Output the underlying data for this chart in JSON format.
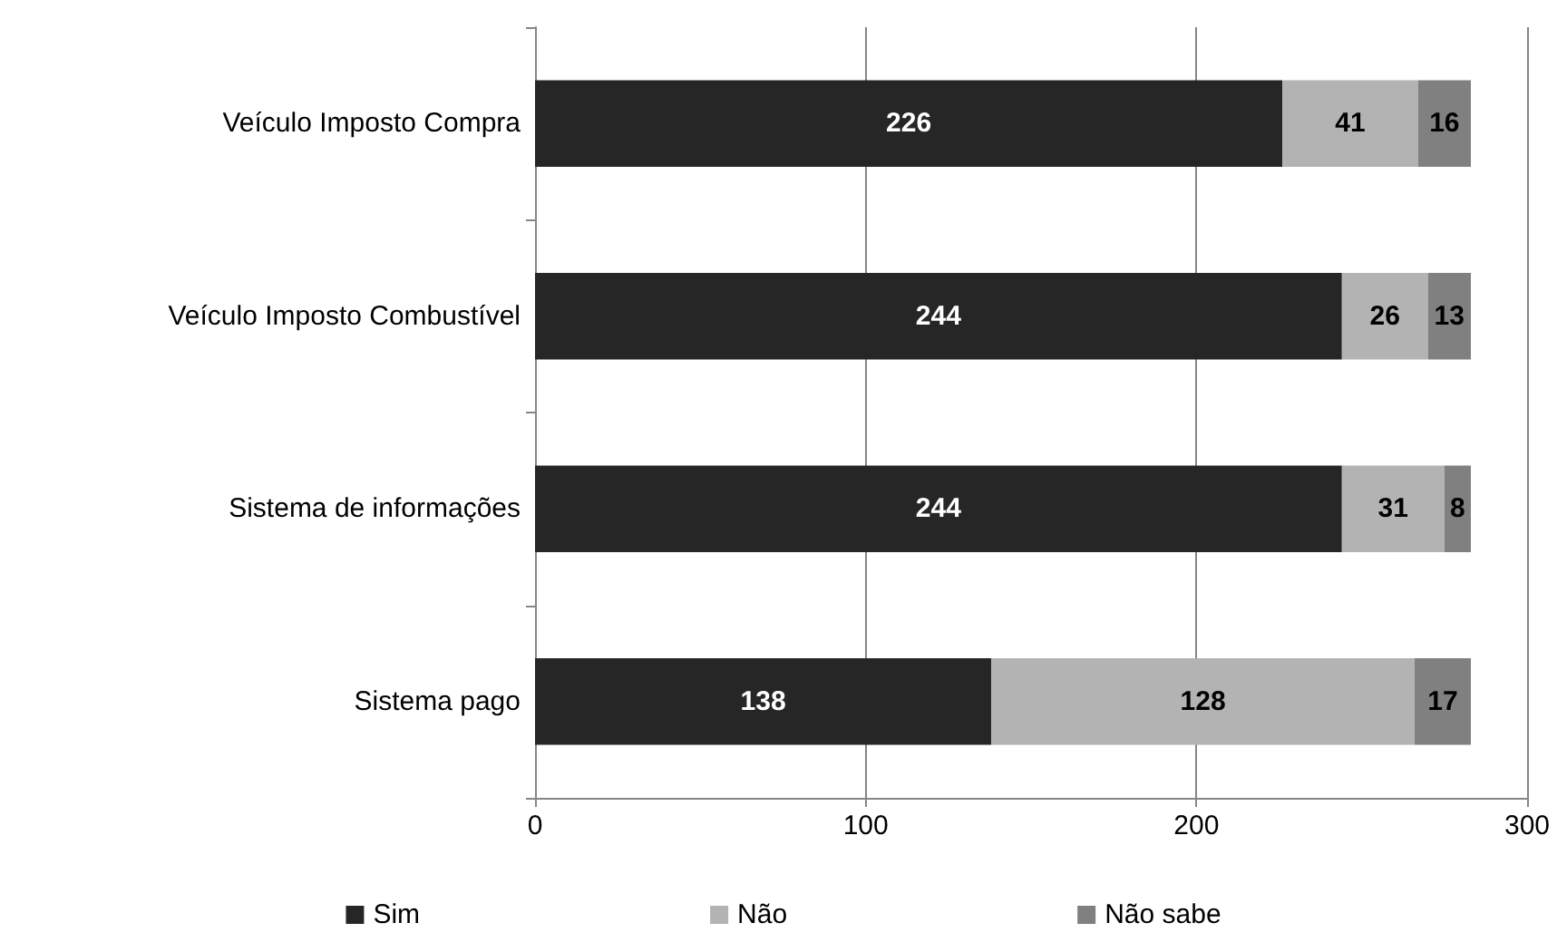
{
  "chart_data": {
    "type": "bar",
    "orientation": "horizontal",
    "stacked": true,
    "data_labels": true,
    "grid": "x",
    "legend": "bottom",
    "categories": [
      "Veículo Imposto Compra",
      "Veículo Imposto Combustível",
      "Sistema de informações",
      "Sistema pago"
    ],
    "series": [
      {
        "name": "Sim",
        "color": "#262626",
        "values": [
          226,
          244,
          244,
          138
        ]
      },
      {
        "name": "Não",
        "color": "#b3b3b3",
        "values": [
          41,
          26,
          31,
          128
        ]
      },
      {
        "name": "Não sabe",
        "color": "#808080",
        "values": [
          16,
          13,
          8,
          17
        ]
      }
    ],
    "xlim": [
      0,
      300
    ],
    "xticks": [
      0,
      100,
      200,
      300
    ]
  }
}
